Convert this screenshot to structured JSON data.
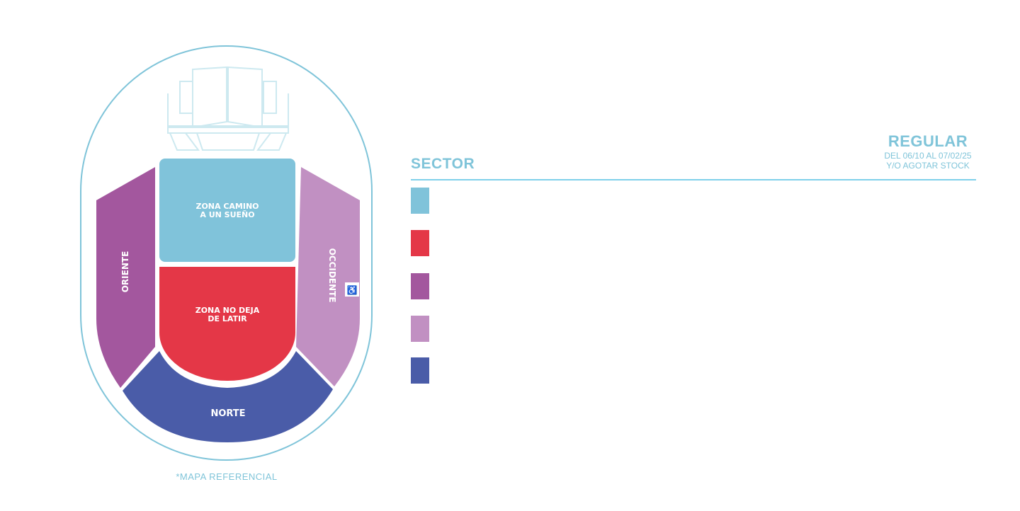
{
  "map": {
    "zones": [
      {
        "id": "zona-camino",
        "label_lines": [
          "ZONA CAMINO",
          "A UN SUEÑO"
        ],
        "color": "#80c3da"
      },
      {
        "id": "zona-no-deja",
        "label_lines": [
          "ZONA NO DEJA",
          "DE LATIR"
        ],
        "color": "#e43747"
      },
      {
        "id": "oriente",
        "label": "ORIENTE",
        "color": "#a3579e"
      },
      {
        "id": "occidente",
        "label": "OCCIDENTE",
        "color": "#c190c2"
      },
      {
        "id": "norte",
        "label": "NORTE",
        "color": "#4a5ca8"
      }
    ],
    "accessibility_icon": "wheelchair-icon",
    "outline_color": "#7fc4d9",
    "caption": "*MAPA REFERENCIAL"
  },
  "table": {
    "sector_header": "SECTOR",
    "regular_header": "REGULAR",
    "regular_sub1": "DEL 06/10 AL 07/02/25",
    "regular_sub2": "Y/O AGOTAR STOCK",
    "rows": [
      {
        "color": "#80c3da"
      },
      {
        "color": "#e43747"
      },
      {
        "color": "#a3579e"
      },
      {
        "color": "#c190c2"
      },
      {
        "color": "#4a5ca8"
      }
    ]
  }
}
